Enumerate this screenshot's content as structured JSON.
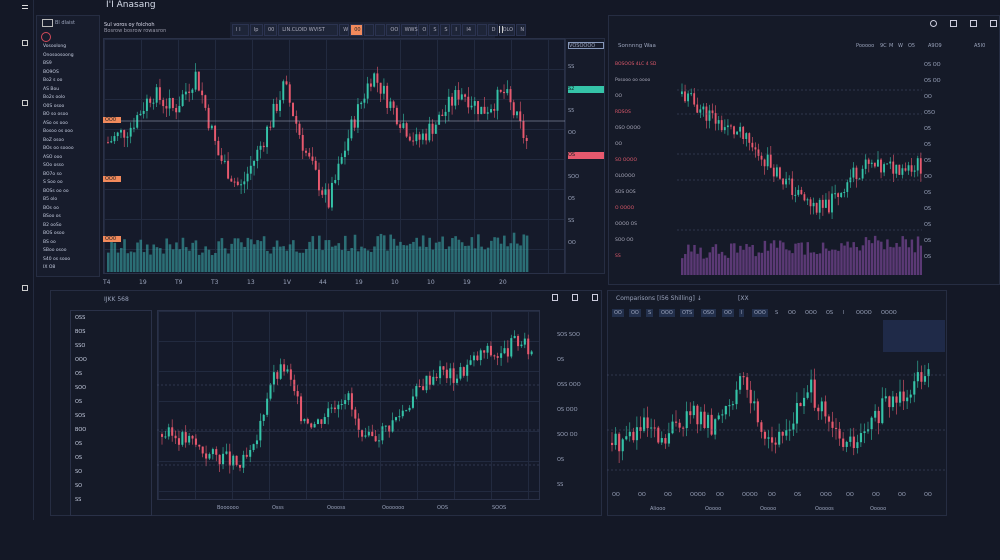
{
  "app": {
    "title": "I'I Anasang"
  },
  "colors": {
    "bg": "#141826",
    "up": "#35c3a8",
    "down": "#e8596e",
    "accent": "#f28a5c",
    "volume": "#3aa6a8"
  },
  "main": {
    "header": {
      "line1": "Sul voros oy folchoh",
      "line2": "Bosrow bosrow rowasron"
    },
    "toolbar": [
      "I I",
      "Ip",
      "00",
      "LIN.CLOID WVIST",
      "W",
      "00",
      "",
      "",
      "OO",
      "WWS",
      "O",
      "S",
      "S",
      "I",
      "I4",
      "",
      "D",
      "OLO",
      "N"
    ],
    "sidebar": [
      "Vosoolong",
      "Onosoosoong",
      "BS9",
      "BO9OS",
      "Bo2 s oo",
      "AS Bou",
      "Bo2s oolo",
      "O0S osoo",
      "BO so osoo",
      "ASo os ooo",
      "Bosoo os ooo",
      "BoZ osoo",
      "BOs oo soooo",
      "ASO ooo",
      "SOo osso",
      "BO7o so",
      "S Soo oo",
      "BOSs oo oo",
      "B5 olo",
      "BOs oo",
      "BSoo os",
      "B2 ooSo",
      "BOS osoo",
      "BS oo",
      "SBoo osoo",
      "S40 os sooo",
      "IX O8"
    ],
    "sidebar_title": "Bl dlaist",
    "xaxis": [
      "T4",
      "19",
      "T9",
      "T3",
      "13",
      "1V",
      "44",
      "19",
      "10",
      "10",
      "19",
      "20"
    ],
    "left_tags": [
      "OO0",
      "OO0",
      "OO0"
    ],
    "price_tags": [
      "VOSOOOO",
      "SS",
      "S2",
      "S5",
      "OO",
      "OS",
      "SOO",
      "O5",
      "SS",
      "OO"
    ],
    "closes": [
      150,
      162,
      190,
      176,
      205,
      140,
      112,
      150,
      196,
      140,
      100,
      160,
      206,
      175,
      150,
      168,
      192,
      175,
      190,
      150
    ]
  },
  "topright": {
    "icons": [
      "gear-icon",
      "flask-icon",
      "chart-add-icon",
      "lock-icon"
    ],
    "header": "Sonnnng Waa",
    "header_right": [
      "Pooooo",
      "9C",
      "M",
      "W",
      "O5",
      "A9O9",
      "A5I0"
    ],
    "left_labels": [
      "BOSOOS 4LC 4 SD",
      "Posooo oo oooo",
      "OO",
      "RDSOS",
      "OSO OOOO",
      "OO",
      "SO OOOO",
      "OLOOOO",
      "SOS OOS",
      "O OOOO",
      "OOOO OS",
      "SOO OO",
      "SS"
    ],
    "right_labels": [
      "OS OO",
      "OS OO",
      "OO",
      "O5O",
      "O5",
      "O5",
      "OS",
      "OO",
      "OS",
      "OS",
      "OS",
      "OS",
      "OS"
    ],
    "closes": [
      250,
      240,
      230,
      220,
      214,
      200,
      190,
      175,
      160,
      150,
      145,
      160,
      178,
      185,
      182,
      184,
      186,
      185
    ]
  },
  "bottomleft": {
    "header": "IJKK 568",
    "icons": [
      "layout-icon",
      "filter-icon",
      "save-icon"
    ],
    "list": [
      "OSS",
      "BOS",
      "SSO",
      "OOO",
      "OS",
      "SOO",
      "OS",
      "SOS",
      "BOO",
      "OS",
      "OS",
      "SO",
      "SO",
      "SS"
    ],
    "right_labels": [
      "SOS SOO",
      "OS",
      "OSS OOO",
      "OS OOO",
      "SOO OO",
      "OS",
      "SS"
    ],
    "xaxis": [
      "Boooooo",
      "Osss",
      "Ooooss",
      "Ooooooo",
      "OOS",
      "SOOS"
    ],
    "closes": [
      120,
      118,
      112,
      100,
      98,
      88,
      104,
      170,
      185,
      140,
      130,
      148,
      160,
      110,
      120,
      132,
      150,
      170,
      182,
      175,
      188,
      200,
      195,
      210,
      200
    ]
  },
  "bottomright": {
    "header": "Comparisons [I56 Shilling] ↓",
    "header_right": "[XX",
    "toolbar": [
      "OO",
      "OO",
      "S",
      "OOO",
      "OTS",
      "OSO",
      "OO",
      "I",
      "OOO",
      "S",
      "OO",
      "OOO",
      "OS",
      "I",
      "OOOO",
      "OOOO"
    ],
    "xaxis": [
      "OO",
      "OO",
      "OO",
      "OOOO",
      "OO",
      "OOOO",
      "OO",
      "OS",
      "OOO",
      "OO",
      "OO",
      "OO",
      "OO"
    ],
    "footer": [
      "Aliooo",
      "Ooooo",
      "Ooooo",
      "Ooooos",
      "Ooooo"
    ],
    "closes": [
      120,
      125,
      130,
      118,
      135,
      140,
      128,
      150,
      160,
      130,
      120,
      140,
      155,
      130,
      118,
      122,
      140,
      150,
      160,
      175
    ]
  }
}
